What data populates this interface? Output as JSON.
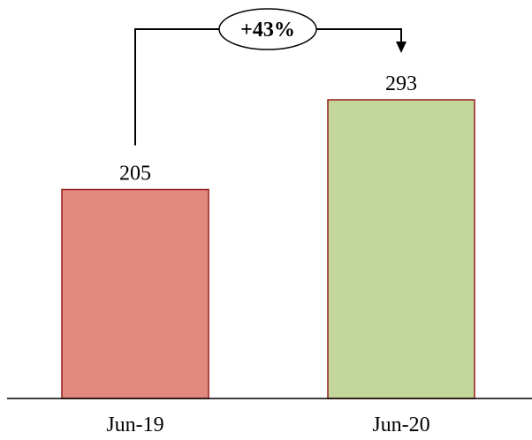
{
  "chart_data": {
    "type": "bar",
    "title": "",
    "xlabel": "",
    "ylabel": "",
    "categories": [
      "Jun-19",
      "Jun-20"
    ],
    "values": [
      205,
      293
    ],
    "value_labels": [
      "205",
      "293"
    ],
    "ylim": [
      0,
      330
    ],
    "grid": false,
    "colors": {
      "bars": [
        "#e38a80",
        "#c4d79b"
      ],
      "bar_border": "#9a1c1c"
    },
    "annotation": {
      "text": "+43%",
      "from_category": "Jun-19",
      "to_category": "Jun-20"
    }
  }
}
